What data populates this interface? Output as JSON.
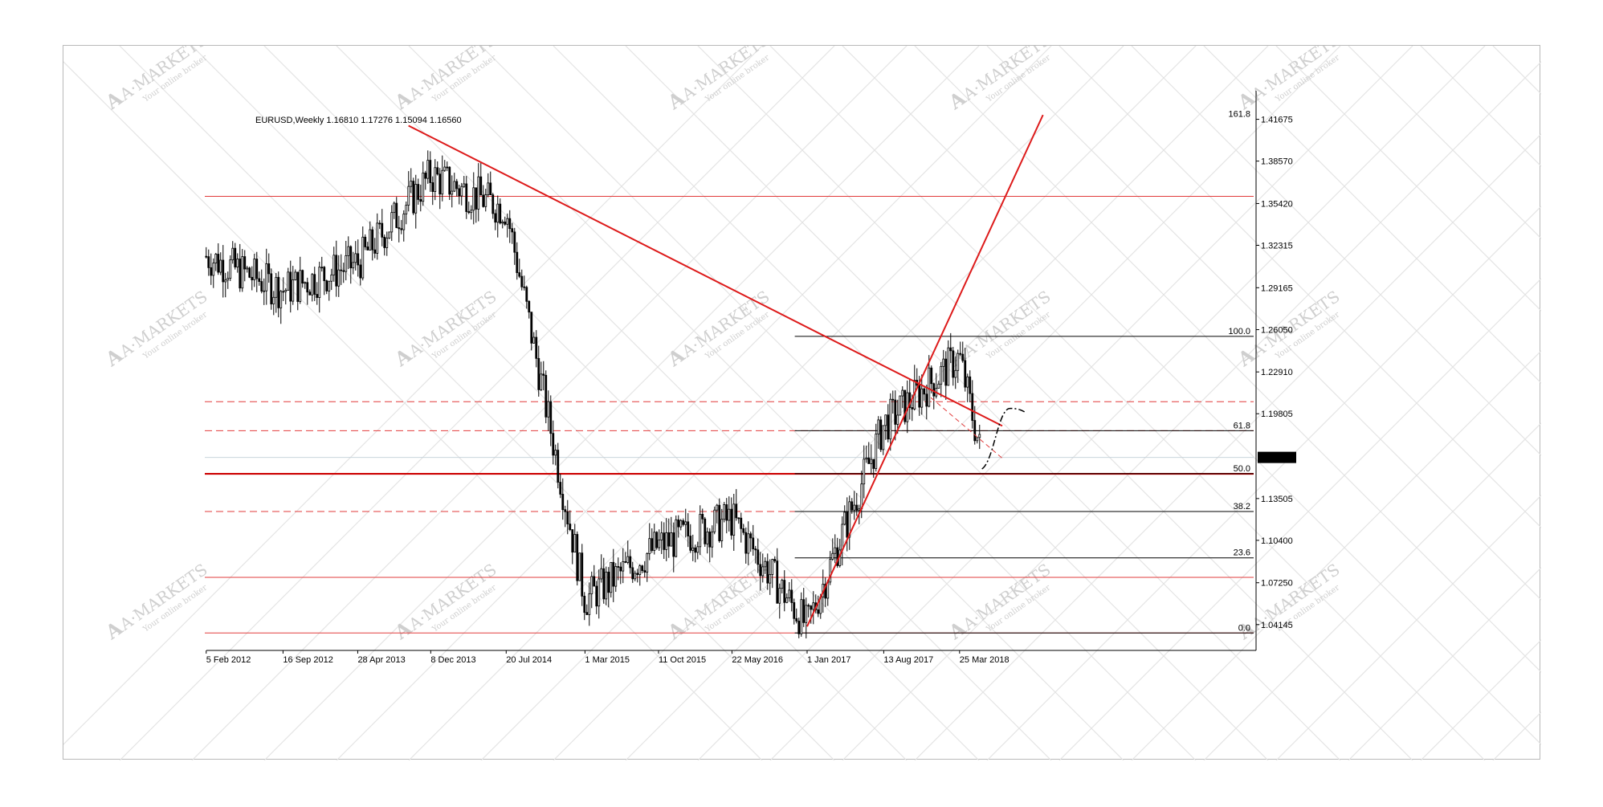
{
  "chart_data": {
    "type": "candlestick",
    "title": "EURUSD,Weekly  1.16810 1.17276 1.15094 1.16560",
    "symbol": "EURUSD",
    "timeframe": "Weekly",
    "ohlc_last": {
      "open": 1.1681,
      "high": 1.17276,
      "low": 1.15094,
      "close": 1.1656
    },
    "current_price_label": "1.16560",
    "ylim": [
      1.027,
      1.432
    ],
    "y_ticks": [
      "1.41675",
      "1.38570",
      "1.35420",
      "1.32315",
      "1.29165",
      "1.26050",
      "1.22910",
      "1.19805",
      "1.16560",
      "1.13505",
      "1.10400",
      "1.07250",
      "1.04145"
    ],
    "x_ticks": [
      "5 Feb 2012",
      "16 Sep 2012",
      "28 Apr 2013",
      "8 Dec 2013",
      "20 Jul 2014",
      "1 Mar 2015",
      "11 Oct 2015",
      "22 May 2016",
      "1 Jan 2017",
      "13 Aug 2017",
      "25 Mar 2018"
    ],
    "price_path": [
      [
        "5 Feb 2012",
        1.315
      ],
      [
        "16 Sep 2012",
        1.29
      ],
      [
        "28 Apr 2013",
        1.31
      ],
      [
        "8 Dec 2013",
        1.375
      ],
      [
        "20 Jul 2014",
        1.35
      ],
      [
        "1 Mar 2015",
        1.06
      ],
      [
        "11 Oct 2015",
        1.1
      ],
      [
        "22 May 2016",
        1.12
      ],
      [
        "1 Jan 2017",
        1.04
      ],
      [
        "13 Aug 2017",
        1.19
      ],
      [
        "25 Mar 2018",
        1.24
      ],
      [
        "2018-06",
        1.165
      ]
    ],
    "fibonacci": {
      "levels": [
        {
          "label": "161.8",
          "price": 1.4167
        },
        {
          "label": "100.0",
          "price": 1.2555
        },
        {
          "label": "61.8",
          "price": 1.1854
        },
        {
          "label": "50.0",
          "price": 1.1535
        },
        {
          "label": "38.2",
          "price": 1.1254
        },
        {
          "label": "23.6",
          "price": 1.091
        },
        {
          "label": "0.0",
          "price": 1.0352
        }
      ]
    },
    "horizontal_levels": [
      {
        "price": 1.3595,
        "style": "solid",
        "color": "#e23b3b"
      },
      {
        "price": 1.207,
        "style": "dashed",
        "color": "#e23b3b"
      },
      {
        "price": 1.1854,
        "style": "dashed",
        "color": "#e23b3b"
      },
      {
        "price": 1.1534,
        "style": "solid-thick",
        "color": "#cc0000"
      },
      {
        "price": 1.1254,
        "style": "dashed",
        "color": "#e23b3b"
      },
      {
        "price": 1.0765,
        "style": "solid",
        "color": "#e23b3b"
      },
      {
        "price": 1.0352,
        "style": "solid",
        "color": "#e23b3b"
      },
      {
        "price": 1.1656,
        "style": "solid",
        "color": "#c8d4dc"
      }
    ],
    "trendlines": [
      {
        "from": [
          "2013-10",
          1.412
        ],
        "to": [
          "2018-08",
          1.189
        ],
        "color": "#dd1a1a",
        "style": "solid"
      },
      {
        "from": [
          "2017-01",
          1.04
        ],
        "to": [
          "2018-12",
          1.42
        ],
        "color": "#dd1a1a",
        "style": "solid"
      },
      {
        "from": [
          "2018-01",
          1.21
        ],
        "to": [
          "2018-08",
          1.165
        ],
        "color": "#e23b3b",
        "style": "dashed"
      }
    ],
    "projection": {
      "style": "dash-dot",
      "color": "#000000"
    },
    "grid": false,
    "watermark": "A·MARKETS Your online broker",
    "colors": {
      "candles": "#000000",
      "lines": "#e23b3b",
      "trend": "#dd1a1a",
      "price_label_bg": "#000000",
      "price_label_text": "#ffffff",
      "watermark": "#d9d9d9"
    }
  }
}
